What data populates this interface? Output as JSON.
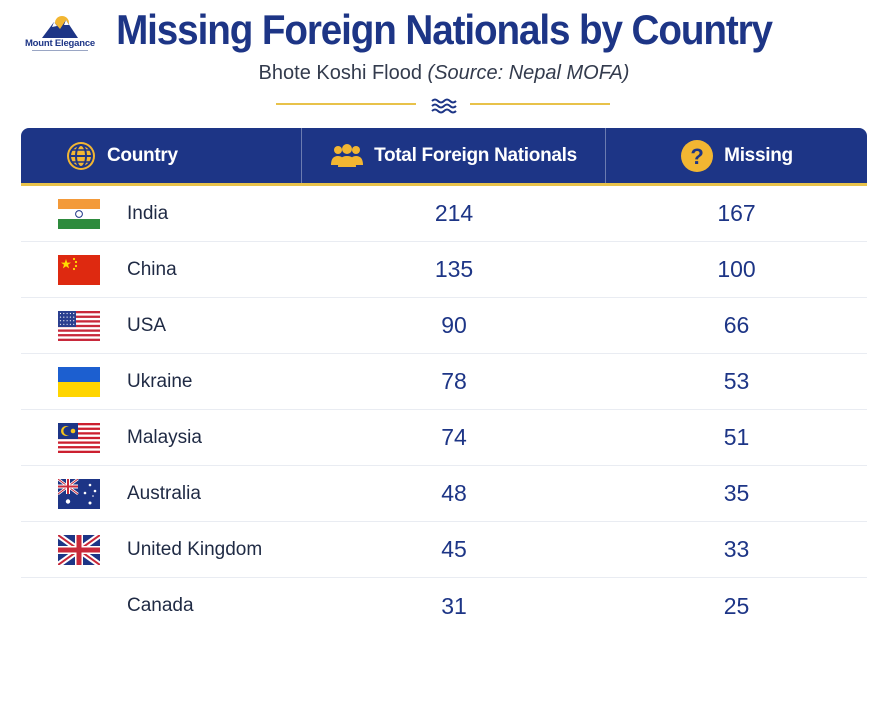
{
  "logo": {
    "text": "Mount Elegance"
  },
  "title": "Missing Foreign Nationals by Country",
  "subtitle": {
    "main": "Bhote Koshi Flood",
    "source": "(Source: Nepal MOFA)"
  },
  "colors": {
    "primary": "#1d3586",
    "accent": "#e8c24a"
  },
  "headers": {
    "country": {
      "label": "Country",
      "icon": "globe-icon"
    },
    "total": {
      "label": "Total Foreign Nationals",
      "icon": "people-group-icon"
    },
    "missing": {
      "label": "Missing",
      "icon": "question-mark-icon"
    }
  },
  "chart_data": {
    "type": "table",
    "columns": [
      "Country",
      "Total Foreign Nationals",
      "Missing"
    ],
    "rows": [
      {
        "country": "India",
        "total": 214,
        "missing": 167,
        "flag": "india-flag-icon"
      },
      {
        "country": "China",
        "total": 135,
        "missing": 100,
        "flag": "china-flag-icon"
      },
      {
        "country": "USA",
        "total": 90,
        "missing": 66,
        "flag": "usa-flag-icon"
      },
      {
        "country": "Ukraine",
        "total": 78,
        "missing": 53,
        "flag": "ukraine-flag-icon"
      },
      {
        "country": "Malaysia",
        "total": 74,
        "missing": 51,
        "flag": "malaysia-flag-icon"
      },
      {
        "country": "Australia",
        "total": 48,
        "missing": 35,
        "flag": "australia-flag-icon"
      },
      {
        "country": "United Kingdom",
        "total": 45,
        "missing": 33,
        "flag": "uk-flag-icon"
      },
      {
        "country": "Canada",
        "total": 31,
        "missing": 25,
        "flag": ""
      }
    ]
  }
}
